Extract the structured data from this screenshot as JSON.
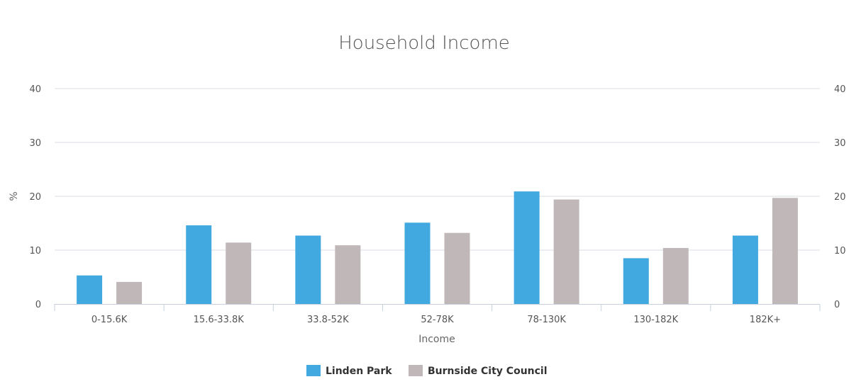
{
  "chart_data": {
    "type": "bar",
    "title": "Household Income",
    "xlabel": "Income",
    "ylabel": "%",
    "ylim": [
      0,
      40
    ],
    "yticks": [
      "0",
      "10",
      "20",
      "30",
      "40"
    ],
    "categories": [
      "0-15.6K",
      "15.6-33.8K",
      "33.8-52K",
      "52-78K",
      "78-130K",
      "130-182K",
      "182K+"
    ],
    "series": [
      {
        "name": "Linden Park",
        "color": "#41a9df",
        "values": [
          5.3,
          14.6,
          12.7,
          15.1,
          20.9,
          8.5,
          12.7
        ]
      },
      {
        "name": "Burnside City Council",
        "color": "#c0b8b8",
        "values": [
          4.1,
          11.4,
          10.9,
          13.2,
          19.4,
          10.4,
          19.7
        ]
      }
    ],
    "grid": true,
    "legend": "bottom-center"
  }
}
